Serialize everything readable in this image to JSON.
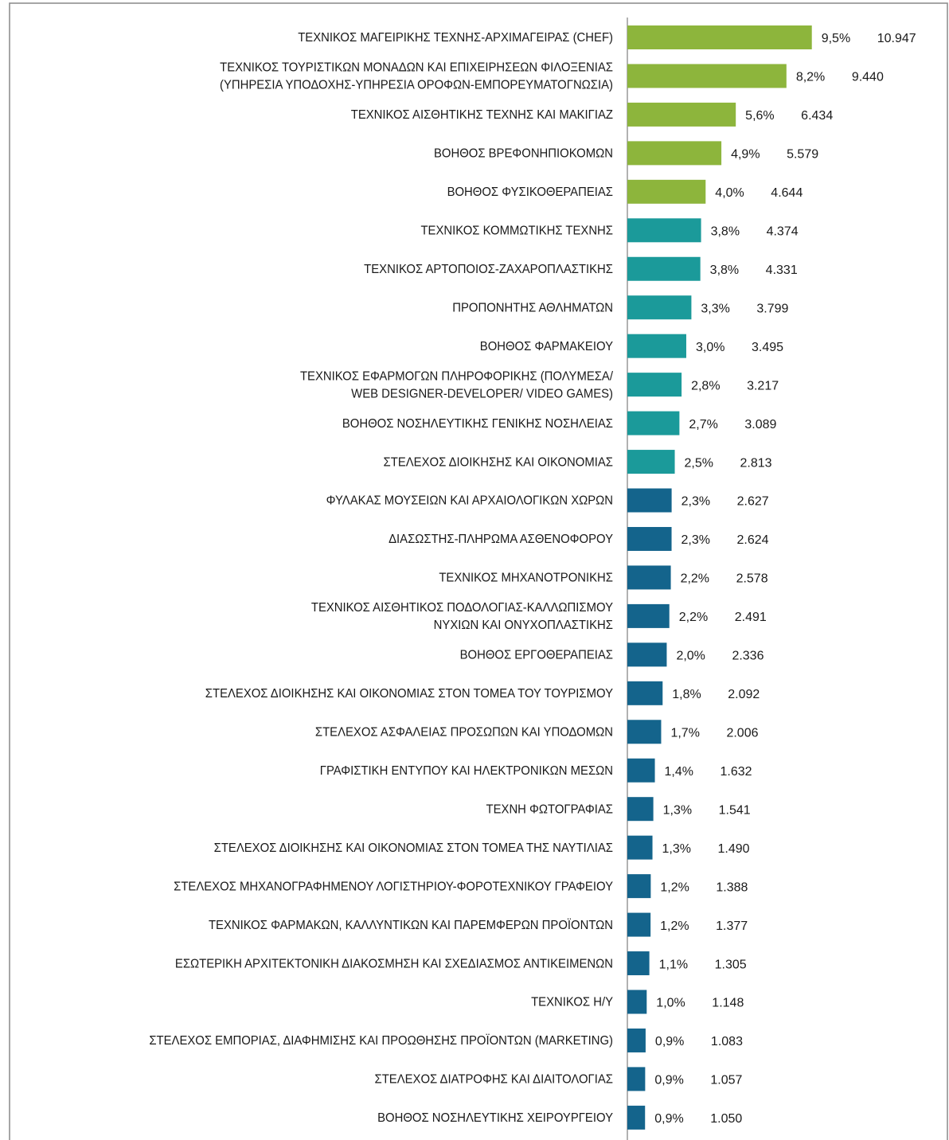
{
  "chart_data": {
    "type": "bar",
    "categories": [
      [
        "ΤΕΧΝΙΚΟΣ ΜΑΓΕΙΡΙΚΗΣ ΤΕΧΝΗΣ-ΑΡΧΙΜΑΓΕΙΡΑΣ (CHEF)"
      ],
      [
        "ΤΕΧΝΙΚΟΣ ΤΟΥΡΙΣΤΙΚΩΝ ΜΟΝΑΔΩΝ ΚΑΙ ΕΠΙΧΕΙΡΗΣΕΩΝ ΦΙΛΟΞΕΝΙΑΣ",
        "(ΥΠΗΡΕΣΙΑ ΥΠΟΔΟΧΗΣ-ΥΠΗΡΕΣΙΑ ΟΡΟΦΩΝ-ΕΜΠΟΡΕΥΜΑΤΟΓΝΩΣΙΑ)"
      ],
      [
        "ΤΕΧΝΙΚΟΣ ΑΙΣΘΗΤΙΚΗΣ ΤΕΧΝΗΣ ΚΑΙ ΜΑΚΙΓΙΑΖ"
      ],
      [
        "ΒΟΗΘΟΣ ΒΡΕΦΟΝΗΠΙΟΚΟΜΩΝ"
      ],
      [
        "ΒΟΗΘΟΣ ΦΥΣΙΚΟΘΕΡΑΠΕΙΑΣ"
      ],
      [
        "ΤΕΧΝΙΚΟΣ ΚΟΜΜΩΤΙΚΗΣ ΤΕΧΝΗΣ"
      ],
      [
        "ΤΕΧΝΙΚΟΣ ΑΡΤΟΠΟΙΟΣ-ΖΑΧΑΡΟΠΛΑΣΤΙΚΗΣ"
      ],
      [
        "ΠΡΟΠΟΝΗΤΗΣ ΑΘΛΗΜΑΤΩΝ"
      ],
      [
        "ΒΟΗΘΟΣ ΦΑΡΜΑΚΕΙΟΥ"
      ],
      [
        "ΤΕΧΝΙΚΟΣ ΕΦΑΡΜΟΓΩΝ ΠΛΗΡΟΦΟΡΙΚΗΣ (ΠΟΛΥΜΕΣΑ/",
        "WEB DESIGNER-DEVELOPER/ VIDEO GAMES)"
      ],
      [
        "ΒΟΗΘΟΣ ΝΟΣΗΛΕΥΤΙΚΗΣ ΓΕΝΙΚΗΣ ΝΟΣΗΛΕΙΑΣ"
      ],
      [
        "ΣΤΕΛΕΧΟΣ ΔΙΟΙΚΗΣΗΣ ΚΑΙ ΟΙΚΟΝΟΜΙΑΣ"
      ],
      [
        "ΦΥΛΑΚΑΣ ΜΟΥΣΕΙΩΝ ΚΑΙ ΑΡΧΑΙΟΛΟΓΙΚΩΝ ΧΩΡΩΝ"
      ],
      [
        "ΔΙΑΣΩΣΤΗΣ-ΠΛΗΡΩΜΑ ΑΣΘΕΝΟΦΟΡΟΥ"
      ],
      [
        "ΤΕΧΝΙΚΟΣ ΜΗΧΑΝΟΤΡΟΝΙΚΗΣ"
      ],
      [
        "ΤΕΧΝΙΚΟΣ ΑΙΣΘΗΤΙΚΟΣ ΠΟΔΟΛΟΓΙΑΣ-ΚΑΛΛΩΠΙΣΜΟΥ",
        "ΝΥΧΙΩΝ ΚΑΙ ΟΝΥΧΟΠΛΑΣΤΙΚΗΣ"
      ],
      [
        "ΒΟΗΘΟΣ ΕΡΓΟΘΕΡΑΠΕΙΑΣ"
      ],
      [
        "ΣΤΕΛΕΧΟΣ ΔΙΟΙΚΗΣΗΣ ΚΑΙ ΟΙΚΟΝΟΜΙΑΣ ΣΤΟΝ ΤΟΜΕΑ ΤΟΥ ΤΟΥΡΙΣΜΟΥ"
      ],
      [
        "ΣΤΕΛΕΧΟΣ ΑΣΦΑΛΕΙΑΣ ΠΡΟΣΩΠΩΝ ΚΑΙ ΥΠΟΔΟΜΩΝ"
      ],
      [
        "ΓΡΑΦΙΣΤΙΚΗ ΕΝΤΥΠΟΥ ΚΑΙ ΗΛΕΚΤΡΟΝΙΚΩΝ ΜΕΣΩΝ"
      ],
      [
        "ΤΕΧΝΗ ΦΩΤΟΓΡΑΦΙΑΣ"
      ],
      [
        "ΣΤΕΛΕΧΟΣ ΔΙΟΙΚΗΣΗΣ ΚΑΙ ΟΙΚΟΝΟΜΙΑΣ ΣΤΟΝ ΤΟΜΕΑ ΤΗΣ ΝΑΥΤΙΛΙΑΣ"
      ],
      [
        "ΣΤΕΛΕΧΟΣ ΜΗΧΑΝΟΓΡΑΦΗΜΕΝΟΥ ΛΟΓΙΣΤΗΡΙΟΥ-ΦΟΡΟΤΕΧΝΙΚΟΥ ΓΡΑΦΕΙΟΥ"
      ],
      [
        "ΤΕΧΝΙΚΟΣ ΦΑΡΜΑΚΩΝ, ΚΑΛΛΥΝΤΙΚΩΝ ΚΑΙ ΠΑΡΕΜΦΕΡΩΝ ΠΡΟΪΟΝΤΩΝ"
      ],
      [
        "ΕΣΩΤΕΡΙΚΗ ΑΡΧΙΤΕΚΤΟΝΙΚΗ ΔΙΑΚΟΣΜΗΣΗ ΚΑΙ ΣΧΕΔΙΑΣΜΟΣ ΑΝΤΙΚΕΙΜΕΝΩΝ"
      ],
      [
        "ΤΕΧΝΙΚΟΣ Η/Υ"
      ],
      [
        "ΣΤΕΛΕΧΟΣ ΕΜΠΟΡΙΑΣ, ΔΙΑΦΗΜΙΣΗΣ ΚΑΙ ΠΡΟΩΘΗΣΗΣ ΠΡΟΪΟΝΤΩΝ (MARKETING)"
      ],
      [
        "ΣΤΕΛΕΧΟΣ ΔΙΑΤΡΟΦΗΣ ΚΑΙ ΔΙΑΙΤΟΛΟΓΙΑΣ"
      ],
      [
        "ΒΟΗΘΟΣ ΝΟΣΗΛΕΥΤΙΚΗΣ ΧΕΙΡΟΥΡΓΕΙΟΥ"
      ]
    ],
    "values": [
      10947,
      9440,
      6434,
      5579,
      4644,
      4374,
      4331,
      3799,
      3495,
      3217,
      3089,
      2813,
      2627,
      2624,
      2578,
      2491,
      2336,
      2092,
      2006,
      1632,
      1541,
      1490,
      1388,
      1377,
      1305,
      1148,
      1083,
      1057,
      1050
    ],
    "value_labels": [
      "10.947",
      "9.440",
      "6.434",
      "5.579",
      "4.644",
      "4.374",
      "4.331",
      "3.799",
      "3.495",
      "3.217",
      "3.089",
      "2.813",
      "2.627",
      "2.624",
      "2.578",
      "2.491",
      "2.336",
      "2.092",
      "2.006",
      "1.632",
      "1.541",
      "1.490",
      "1.388",
      "1.377",
      "1.305",
      "1.148",
      "1.083",
      "1.057",
      "1.050"
    ],
    "shares": [
      9.5,
      8.2,
      5.6,
      4.9,
      4.0,
      3.8,
      3.8,
      3.3,
      3.0,
      2.8,
      2.7,
      2.5,
      2.3,
      2.3,
      2.2,
      2.2,
      2.0,
      1.8,
      1.7,
      1.4,
      1.3,
      1.3,
      1.2,
      1.2,
      1.1,
      1.0,
      0.9,
      0.9,
      0.9
    ],
    "share_labels": [
      "9,5%",
      "8,2%",
      "5,6%",
      "4,9%",
      "4,0%",
      "3,8%",
      "3,8%",
      "3,3%",
      "3,0%",
      "2,8%",
      "2,7%",
      "2,5%",
      "2,3%",
      "2,3%",
      "2,2%",
      "2,2%",
      "2,0%",
      "1,8%",
      "1,7%",
      "1,4%",
      "1,3%",
      "1,3%",
      "1,2%",
      "1,2%",
      "1,1%",
      "1,0%",
      "0,9%",
      "0,9%",
      "0,9%"
    ],
    "colors": [
      "#8db53c",
      "#8db53c",
      "#8db53c",
      "#8db53c",
      "#8db53c",
      "#1b9a9a",
      "#1b9a9a",
      "#1b9a9a",
      "#1b9a9a",
      "#1b9a9a",
      "#1b9a9a",
      "#1b9a9a",
      "#14648c",
      "#14648c",
      "#14648c",
      "#14648c",
      "#14648c",
      "#14648c",
      "#14648c",
      "#14648c",
      "#14648c",
      "#14648c",
      "#14648c",
      "#14648c",
      "#14648c",
      "#14648c",
      "#14648c",
      "#14648c",
      "#14648c"
    ],
    "xlim": [
      0,
      12000
    ]
  }
}
